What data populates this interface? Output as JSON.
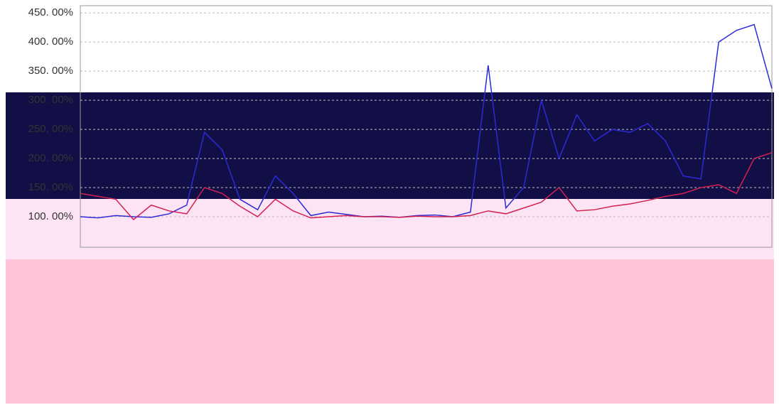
{
  "chart_data": {
    "type": "line",
    "yticks": [
      {
        "value": 100,
        "label": "100. 00%"
      },
      {
        "value": 150,
        "label": "150. 00%"
      },
      {
        "value": 200,
        "label": "200. 00%"
      },
      {
        "value": 250,
        "label": "250. 00%"
      },
      {
        "value": 300,
        "label": "300. 00%"
      },
      {
        "value": 350,
        "label": "350. 00%"
      },
      {
        "value": 400,
        "label": "400. 00%"
      },
      {
        "value": 450,
        "label": "450. 00%"
      }
    ],
    "ylim": [
      50,
      460
    ],
    "grid": true,
    "series": [
      {
        "color": "#2a2ad8",
        "values": [
          100,
          98,
          102,
          100,
          99,
          105,
          120,
          245,
          215,
          130,
          112,
          170,
          140,
          102,
          108,
          104,
          100,
          101,
          99,
          102,
          103,
          100,
          108,
          360,
          115,
          150,
          300,
          200,
          275,
          230,
          250,
          245,
          260,
          230,
          170,
          165,
          400,
          420,
          430,
          320
        ]
      },
      {
        "color": "#d42050",
        "values": [
          140,
          135,
          130,
          95,
          120,
          110,
          105,
          150,
          140,
          118,
          100,
          130,
          110,
          98,
          100,
          102,
          100,
          100,
          99,
          101,
          100,
          100,
          102,
          110,
          105,
          115,
          125,
          150,
          110,
          112,
          118,
          122,
          128,
          135,
          140,
          150,
          155,
          140,
          200,
          210
        ]
      }
    ]
  }
}
